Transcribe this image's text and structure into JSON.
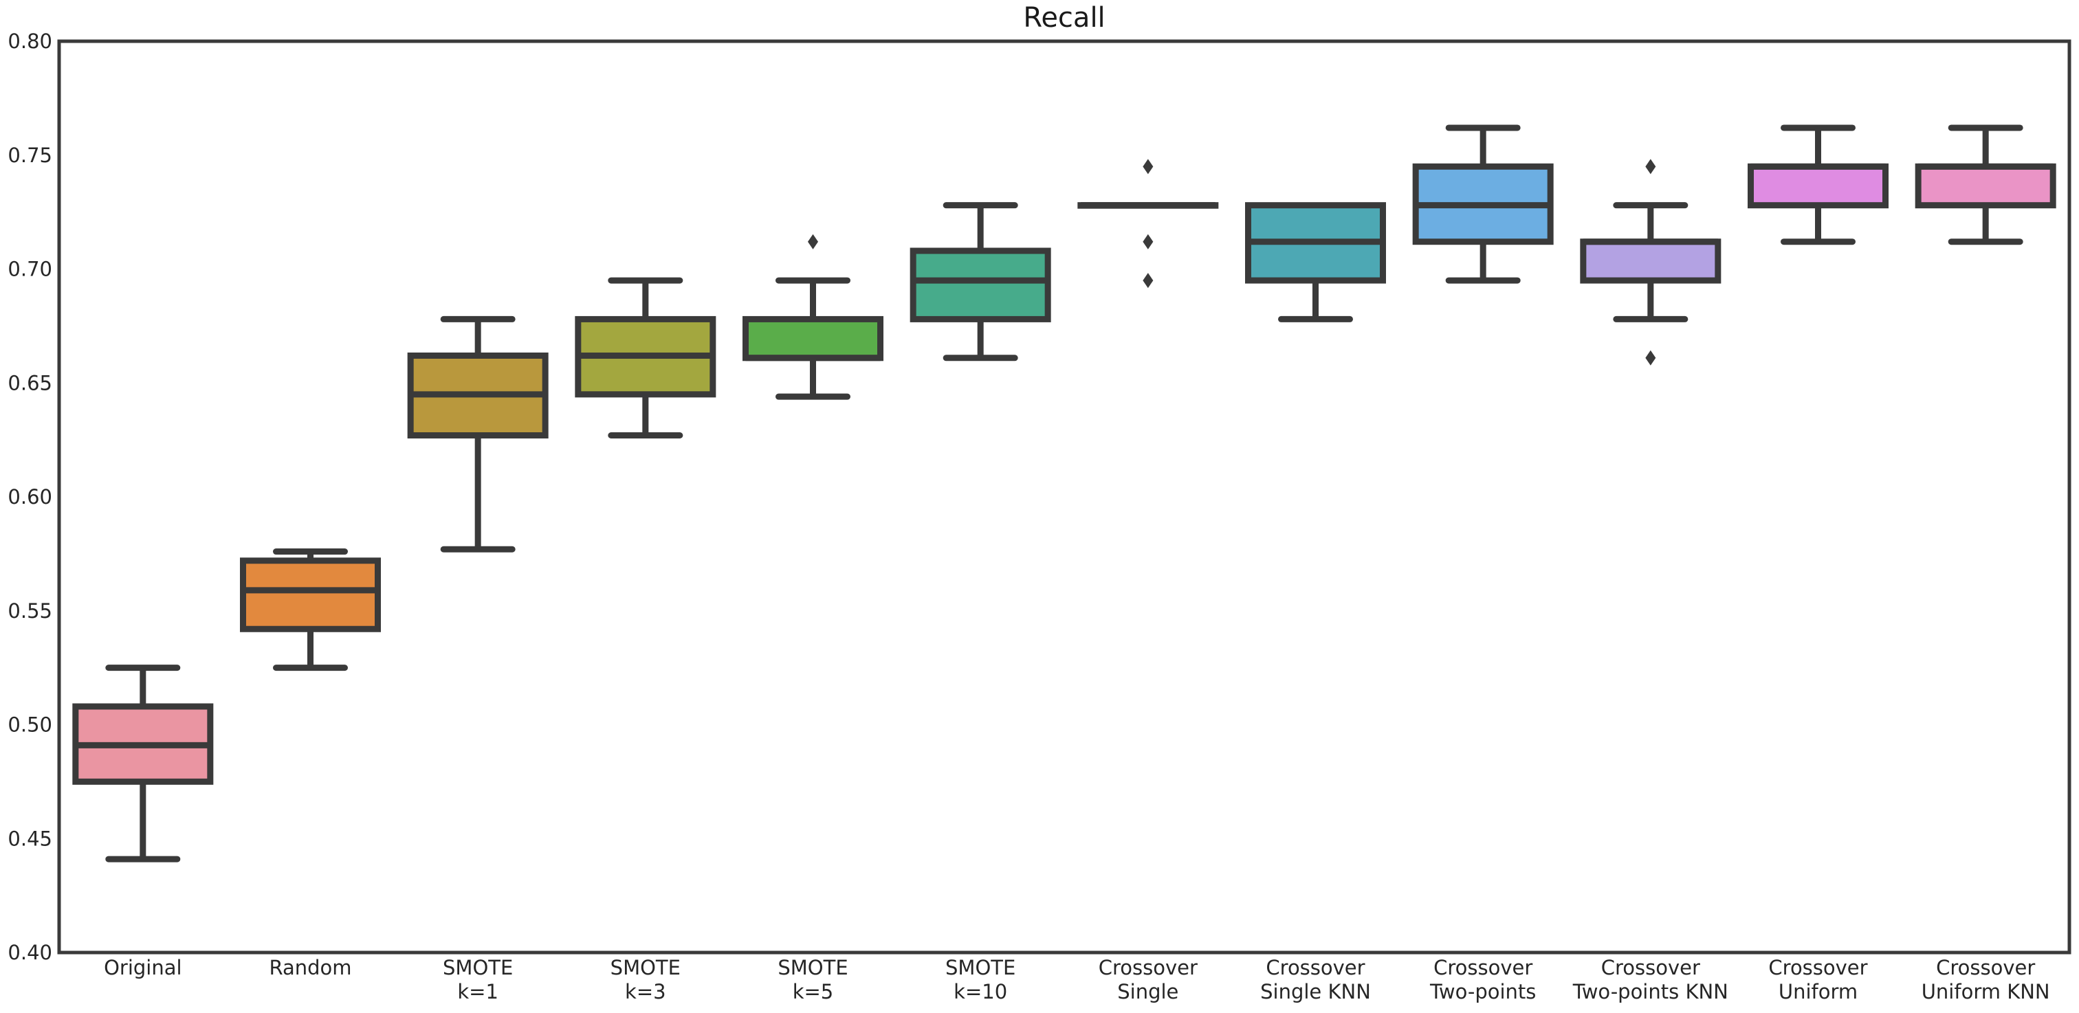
{
  "chart_data": {
    "type": "boxplot",
    "title": "Recall",
    "xlabel": "",
    "ylabel": "",
    "ylim": [
      0.4,
      0.8
    ],
    "ytick_step": 0.05,
    "ytick_labels": [
      "0.80",
      "0.75",
      "0.70",
      "0.65",
      "0.60",
      "0.55",
      "0.50",
      "0.45",
      "0.40"
    ],
    "grid": false,
    "legend": null,
    "line_color": "#3a3a3a",
    "categories": [
      "Original",
      "Random",
      "SMOTE k=1",
      "SMOTE k=3",
      "SMOTE k=5",
      "SMOTE k=10",
      "Crossover Single",
      "Crossover Single KNN",
      "Crossover Two-points",
      "Crossover Two-points KNN",
      "Crossover Uniform",
      "Crossover Uniform KNN"
    ],
    "series": [
      {
        "slug": "original",
        "label_lines": [
          "Original"
        ],
        "whisker_low": 0.441,
        "q1": 0.475,
        "median": 0.491,
        "q3": 0.508,
        "whisker_high": 0.525,
        "outliers": [],
        "color": "#ea95a2"
      },
      {
        "slug": "random",
        "label_lines": [
          "Random"
        ],
        "whisker_low": 0.525,
        "q1": 0.542,
        "median": 0.559,
        "q3": 0.572,
        "whisker_high": 0.576,
        "outliers": [],
        "color": "#e2893e"
      },
      {
        "slug": "smote-k1",
        "label_lines": [
          "SMOTE",
          "k=1"
        ],
        "whisker_low": 0.577,
        "q1": 0.627,
        "median": 0.645,
        "q3": 0.662,
        "whisker_high": 0.678,
        "outliers": [],
        "color": "#b9983d"
      },
      {
        "slug": "smote-k3",
        "label_lines": [
          "SMOTE",
          "k=3"
        ],
        "whisker_low": 0.627,
        "q1": 0.645,
        "median": 0.662,
        "q3": 0.678,
        "whisker_high": 0.695,
        "outliers": [],
        "color": "#a3a73f"
      },
      {
        "slug": "smote-k5",
        "label_lines": [
          "SMOTE",
          "k=5"
        ],
        "whisker_low": 0.644,
        "q1": 0.661,
        "median": 0.661,
        "q3": 0.678,
        "whisker_high": 0.695,
        "outliers": [
          0.712
        ],
        "color": "#5aad4a"
      },
      {
        "slug": "smote-k10",
        "label_lines": [
          "SMOTE",
          "k=10"
        ],
        "whisker_low": 0.661,
        "q1": 0.678,
        "median": 0.695,
        "q3": 0.708,
        "whisker_high": 0.728,
        "outliers": [],
        "color": "#47ab8b"
      },
      {
        "slug": "crossover-single",
        "label_lines": [
          "Crossover",
          "Single"
        ],
        "whisker_low": 0.728,
        "q1": 0.728,
        "median": 0.728,
        "q3": 0.728,
        "whisker_high": 0.728,
        "outliers": [
          0.745,
          0.712,
          0.695
        ],
        "color": "#3cacab"
      },
      {
        "slug": "crossover-single-knn",
        "label_lines": [
          "Crossover",
          "Single KNN"
        ],
        "whisker_low": 0.678,
        "q1": 0.695,
        "median": 0.712,
        "q3": 0.728,
        "whisker_high": 0.728,
        "outliers": [],
        "color": "#4da8b4"
      },
      {
        "slug": "crossover-two-points",
        "label_lines": [
          "Crossover",
          "Two-points"
        ],
        "whisker_low": 0.695,
        "q1": 0.712,
        "median": 0.728,
        "q3": 0.745,
        "whisker_high": 0.762,
        "outliers": [],
        "color": "#6caee2"
      },
      {
        "slug": "crossover-two-points-knn",
        "label_lines": [
          "Crossover",
          "Two-points KNN"
        ],
        "whisker_low": 0.678,
        "q1": 0.695,
        "median": 0.712,
        "q3": 0.712,
        "whisker_high": 0.728,
        "outliers": [
          0.745,
          0.661
        ],
        "color": "#b3a2e3"
      },
      {
        "slug": "crossover-uniform",
        "label_lines": [
          "Crossover",
          "Uniform"
        ],
        "whisker_low": 0.712,
        "q1": 0.728,
        "median": 0.745,
        "q3": 0.745,
        "whisker_high": 0.762,
        "outliers": [],
        "color": "#df8ce2"
      },
      {
        "slug": "crossover-uniform-knn",
        "label_lines": [
          "Crossover",
          "Uniform KNN"
        ],
        "whisker_low": 0.712,
        "q1": 0.728,
        "median": 0.745,
        "q3": 0.745,
        "whisker_high": 0.762,
        "outliers": [],
        "color": "#ea94c6"
      }
    ]
  }
}
